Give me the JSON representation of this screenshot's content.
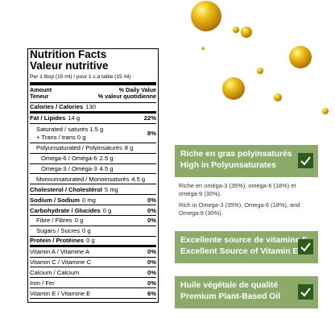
{
  "nutrition": {
    "title": "Nutrition Facts",
    "title_fr": "Valeur nutritive",
    "serving": "Per 1 tbsp (15 ml) / pour 1 c.à table (15 ml)",
    "amount": "Amount",
    "amount_fr": "Teneur",
    "dv": "% Daily Value",
    "dv_fr": "% valeur quotidienne",
    "rows": [
      {
        "label": "Calories / Calories",
        "amount": "130"
      },
      {
        "label": "Fat / Lipides",
        "amount": "14 g",
        "dv": "22%"
      },
      {
        "label": "Saturated / saturés",
        "amount": "1.5 g",
        "label2": "+ Trans / trans",
        "amount2": "0 g",
        "dv": "8%"
      },
      {
        "label": "Polyunsaturated / Polyinsaturés",
        "amount": "8 g"
      },
      {
        "label": "Omega-6 / Oméga-6",
        "amount": "2.5 g"
      },
      {
        "label": "Omega-3 / Oméga-3",
        "amount": "4.5 g"
      },
      {
        "label": "Monounsaturated / Monoinsaturés",
        "amount": "4.5 g"
      },
      {
        "label": "Cholesterol / Cholestérol",
        "amount": "5 mg"
      },
      {
        "label": "Sodium / Sodium",
        "amount": "0 mg",
        "dv": "0%"
      },
      {
        "label": "Carbohydrate / Glucides",
        "amount": "0 g",
        "dv": "0%"
      },
      {
        "label": "Fibre / Fibres",
        "amount": "0 g",
        "dv": "0%"
      },
      {
        "label": "Sugars / Sucres",
        "amount": "0 g"
      },
      {
        "label": "Protein / Protéines",
        "amount": "0 g"
      },
      {
        "label": "Vitamin A / Vitamine A",
        "dv": "0%"
      },
      {
        "label": "Vitamin C / Vitamine C",
        "dv": "0%"
      },
      {
        "label": "Calcium / Calcium",
        "dv": "0%"
      },
      {
        "label": "Iron / Fer",
        "dv": "0%"
      },
      {
        "label": "Vitamin E / Vitamine E",
        "dv": "6%"
      }
    ]
  },
  "features": [
    {
      "title_fr": "Riche en gras polyinsaturés",
      "title_en": "High in Polyunsaturates",
      "notes": [
        "Riche en oméga-3 (35%), oméga-6 (18%) et oméga-9 (30%).",
        "Rich in Omega-3 (35%), Omega-6 (18%), and Omega-9 (30%)."
      ]
    },
    {
      "title_fr": "Excellente source de vitamine E",
      "title_en": "Excellent Source of Vitamin E"
    },
    {
      "title_fr": "Huile végétale de qualité",
      "title_en": "Premium Plant-Based Oil"
    }
  ]
}
